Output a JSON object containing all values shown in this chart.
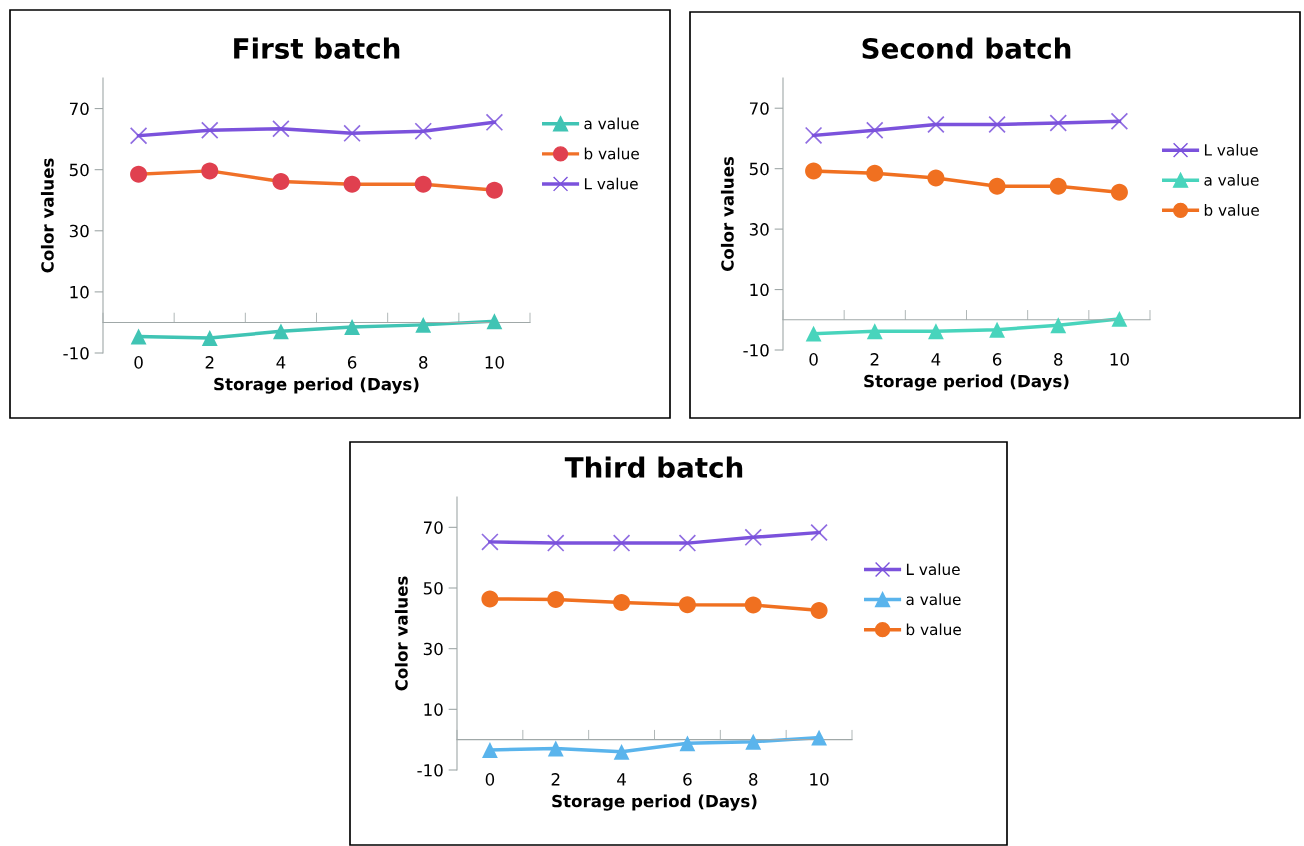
{
  "chart_data": [
    {
      "type": "line",
      "title": "First batch",
      "xlabel": "Storage period (Days)",
      "ylabel": "Color values",
      "categories": [
        "0",
        "2",
        "4",
        "6",
        "8",
        "10"
      ],
      "ylim": [
        -10,
        80
      ],
      "yticks": [
        -10,
        10,
        30,
        50,
        70
      ],
      "grid": false,
      "legend": "right",
      "series": [
        {
          "name": "a value",
          "color": "#40c4b4",
          "marker": "triangle",
          "values": [
            -4.6,
            -5.1,
            -2.9,
            -1.5,
            -0.8,
            0.4
          ]
        },
        {
          "name": "b value",
          "color": "#f07028",
          "colors": [
            "#e0404f",
            "#e0404f",
            "#e0404f",
            "#e0404f",
            "#e0404f",
            "#e0404f"
          ],
          "marker": "circle",
          "values": [
            48.5,
            49.6,
            46.1,
            45.2,
            45.2,
            43.3
          ]
        },
        {
          "name": "L value",
          "color": "#7b52dc",
          "marker": "cross",
          "values": [
            61.1,
            62.9,
            63.4,
            61.9,
            62.6,
            65.5
          ]
        }
      ]
    },
    {
      "type": "line",
      "title": "Second batch",
      "xlabel": "Storage period (Days)",
      "ylabel": "Color values",
      "categories": [
        "0",
        "2",
        "4",
        "6",
        "8",
        "10"
      ],
      "ylim": [
        -10,
        80
      ],
      "yticks": [
        -10,
        10,
        30,
        50,
        70
      ],
      "grid": false,
      "legend": "right",
      "series": [
        {
          "name": "L value",
          "color": "#7b52dc",
          "marker": "cross",
          "values": [
            61.0,
            62.7,
            64.6,
            64.6,
            65.1,
            65.7
          ]
        },
        {
          "name": "a value",
          "color": "#48d4bc",
          "marker": "triangle",
          "values": [
            -4.6,
            -3.8,
            -3.8,
            -3.3,
            -1.8,
            0.3
          ]
        },
        {
          "name": "b value",
          "color": "#f07020",
          "marker": "circle",
          "values": [
            49.2,
            48.5,
            46.9,
            44.2,
            44.2,
            42.2
          ]
        }
      ]
    },
    {
      "type": "line",
      "title": "Third batch",
      "xlabel": "Storage period (Days)",
      "ylabel": "Color values",
      "categories": [
        "0",
        "2",
        "4",
        "6",
        "8",
        "10"
      ],
      "ylim": [
        -10,
        80
      ],
      "yticks": [
        -10,
        10,
        30,
        50,
        70
      ],
      "grid": false,
      "legend": "right",
      "series": [
        {
          "name": "L value",
          "color": "#7b52dc",
          "marker": "cross",
          "values": [
            65.2,
            64.8,
            64.8,
            64.8,
            66.7,
            68.3
          ]
        },
        {
          "name": "a value",
          "color": "#5ab4ec",
          "marker": "triangle",
          "values": [
            -3.4,
            -2.9,
            -4.0,
            -1.2,
            -0.7,
            0.7
          ]
        },
        {
          "name": "b value",
          "color": "#f07020",
          "marker": "circle",
          "values": [
            46.4,
            46.2,
            45.2,
            44.5,
            44.4,
            42.6
          ]
        }
      ]
    }
  ]
}
